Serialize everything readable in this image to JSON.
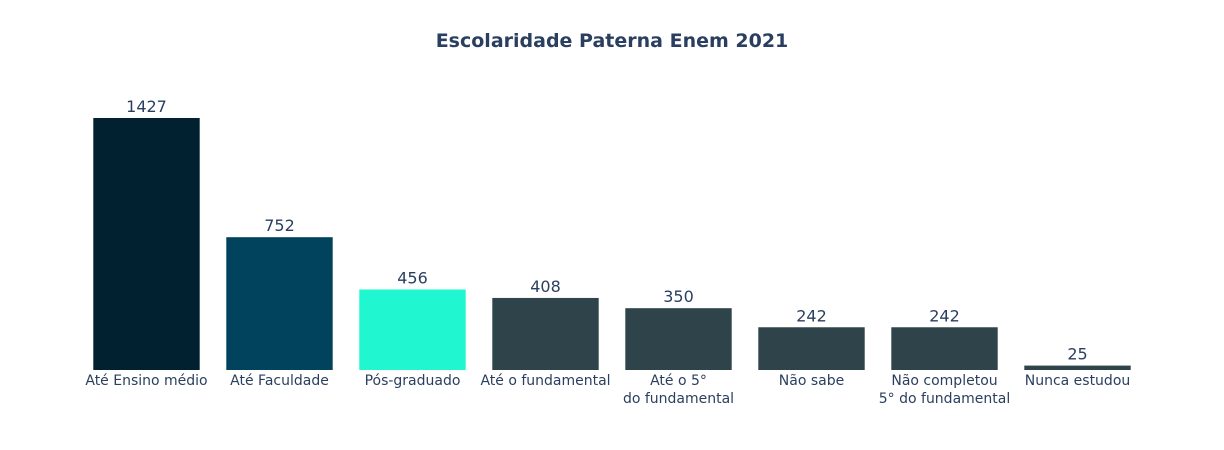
{
  "chart_data": {
    "type": "bar",
    "title": "Escolaridade Paterna Enem 2021",
    "xlabel": "",
    "ylabel": "",
    "categories": [
      [
        "Até Ensino médio"
      ],
      [
        "Até Faculdade"
      ],
      [
        "Pós-graduado"
      ],
      [
        "Até o fundamental"
      ],
      [
        "Até o 5°",
        "do fundamental"
      ],
      [
        "Não sabe"
      ],
      [
        "Não completou",
        "5° do fundamental"
      ],
      [
        "Nunca estudou"
      ]
    ],
    "values": [
      1427,
      752,
      456,
      408,
      350,
      242,
      242,
      25
    ],
    "colors": [
      "#012130",
      "#01425c",
      "#20f7d0",
      "#2e434a",
      "#2e434a",
      "#2e434a",
      "#2e434a",
      "#2e434a"
    ],
    "ylim": [
      0,
      1427
    ],
    "grid": false,
    "legend": false
  }
}
